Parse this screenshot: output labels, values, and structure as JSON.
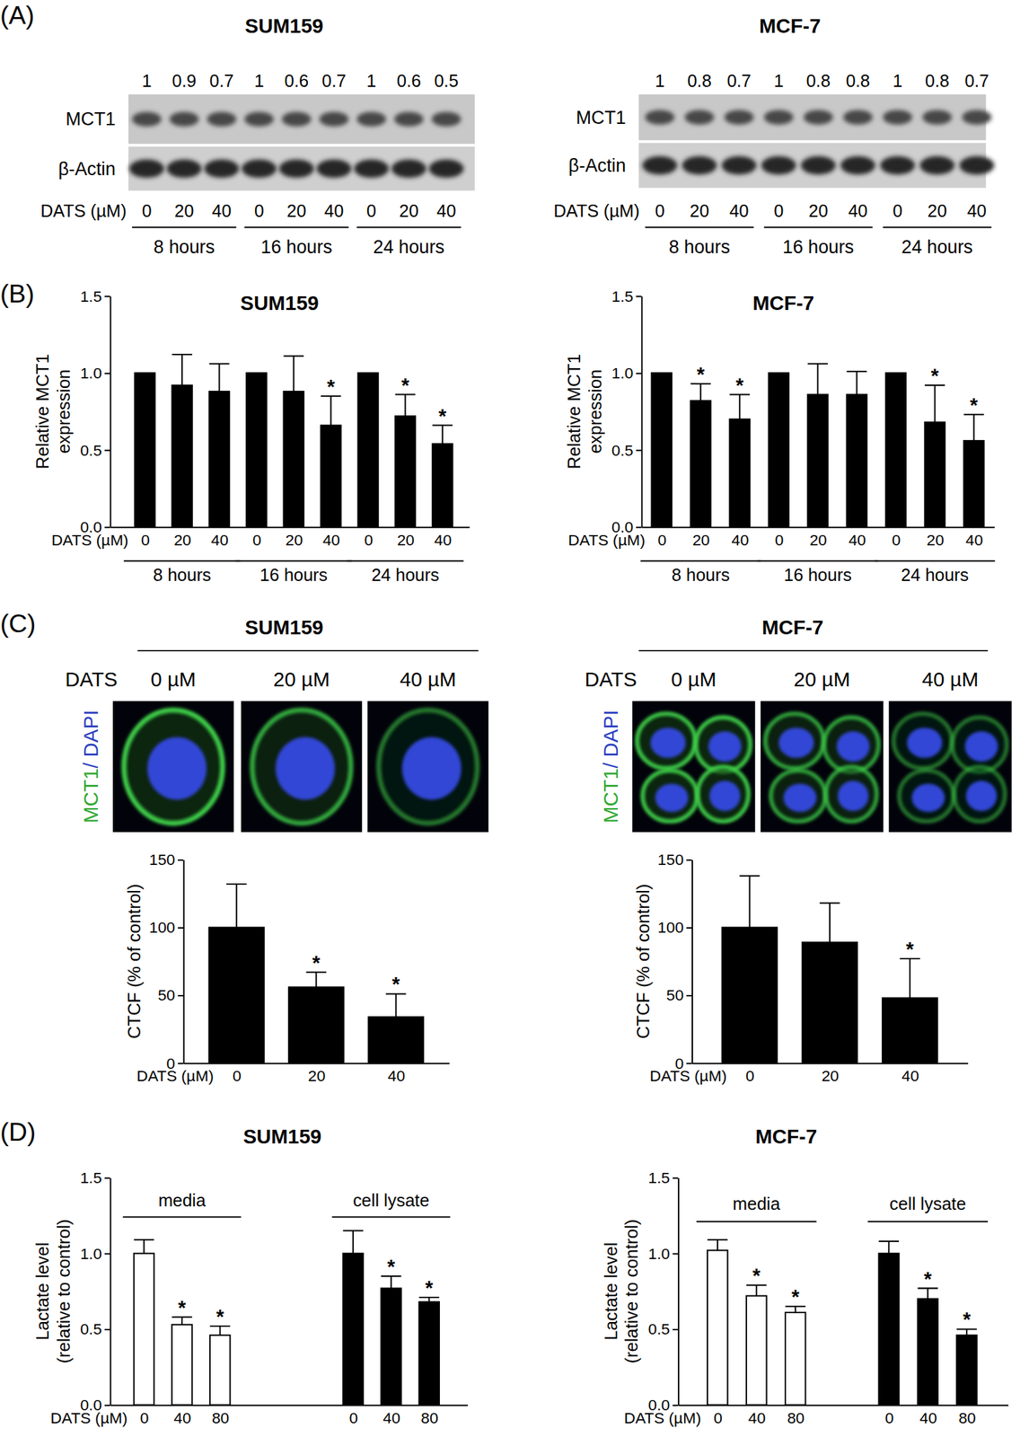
{
  "panel_labels": [
    "(A)",
    "(B)",
    "(C)",
    "(D)"
  ],
  "blots": [
    {
      "title": "SUM159",
      "rows": [
        "MCT1",
        "β-Actin"
      ],
      "ratios": [
        1,
        0.9,
        0.7,
        1,
        0.6,
        0.7,
        1,
        0.6,
        0.5
      ],
      "x_label": "DATS (µM)",
      "doses": [
        "0",
        "20",
        "40",
        "0",
        "20",
        "40",
        "0",
        "20",
        "40"
      ],
      "times": [
        "8 hours",
        "16 hours",
        "24 hours"
      ]
    },
    {
      "title": "MCF-7",
      "rows": [
        "MCT1",
        "β-Actin"
      ],
      "ratios": [
        1,
        0.8,
        0.7,
        1,
        0.8,
        0.8,
        1,
        0.8,
        0.7
      ],
      "x_label": "DATS (µM)",
      "doses": [
        "0",
        "20",
        "40",
        "0",
        "20",
        "40",
        "0",
        "20",
        "40"
      ],
      "times": [
        "8 hours",
        "16 hours",
        "24 hours"
      ]
    }
  ],
  "images": [
    {
      "title": "SUM159",
      "x_label": "DATS",
      "doses": [
        "0 µM",
        "20 µM",
        "40 µM"
      ],
      "stain": [
        "MCT1",
        "/ DAPI"
      ]
    },
    {
      "title": "MCF-7",
      "x_label": "DATS",
      "doses": [
        "0 µM",
        "20 µM",
        "40 µM"
      ],
      "stain": [
        "MCT1",
        "/ DAPI"
      ]
    }
  ],
  "chart_data": [
    {
      "type": "bar",
      "title": "SUM159",
      "x_label": "DATS (µM)",
      "y_label": "Relative MCT1\nexpression",
      "categories": [
        "0",
        "20",
        "40",
        "0",
        "20",
        "40",
        "0",
        "20",
        "40"
      ],
      "groups": [
        "8 hours",
        "16 hours",
        "24 hours"
      ],
      "values": [
        1,
        0.92,
        0.88,
        1,
        0.88,
        0.66,
        1,
        0.72,
        0.54
      ],
      "errors": [
        0,
        0.2,
        0.18,
        0,
        0.23,
        0.19,
        0,
        0.14,
        0.12
      ],
      "annotations": [
        null,
        null,
        null,
        null,
        null,
        "*",
        null,
        "*",
        "*"
      ],
      "color": "#000000",
      "ylim": [
        0,
        1.5
      ],
      "yticks": [
        {
          "value": 0,
          "label": "0.0"
        },
        {
          "value": 0.5,
          "label": "0.5"
        },
        {
          "value": 1,
          "label": "1.0"
        },
        {
          "value": 1.5,
          "label": "1.5"
        }
      ]
    },
    {
      "type": "bar",
      "title": "MCF-7",
      "x_label": "DATS (µM)",
      "y_label": "Relative MCT1\nexpression",
      "categories": [
        "0",
        "20",
        "40",
        "0",
        "20",
        "40",
        "0",
        "20",
        "40"
      ],
      "groups": [
        "8 hours",
        "16 hours",
        "24 hours"
      ],
      "values": [
        1,
        0.82,
        0.7,
        1,
        0.86,
        0.86,
        1,
        0.68,
        0.56
      ],
      "errors": [
        0,
        0.11,
        0.16,
        0,
        0.2,
        0.15,
        0,
        0.24,
        0.17
      ],
      "annotations": [
        null,
        "*",
        "*",
        null,
        null,
        null,
        null,
        "*",
        "*"
      ],
      "color": "#000000",
      "ylim": [
        0,
        1.5
      ],
      "yticks": [
        {
          "value": 0,
          "label": "0.0"
        },
        {
          "value": 0.5,
          "label": "0.5"
        },
        {
          "value": 1,
          "label": "1.0"
        },
        {
          "value": 1.5,
          "label": "1.5"
        }
      ]
    },
    {
      "type": "bar",
      "x_label": "DATS (µM)",
      "y_label": "CTCF (% of control)",
      "categories": [
        "0",
        "20",
        "40"
      ],
      "values": [
        100,
        56,
        34
      ],
      "errors": [
        32,
        11,
        17
      ],
      "annotations": [
        null,
        "*",
        "*"
      ],
      "color": "#000000",
      "ylim": [
        0,
        150
      ],
      "yticks": [
        0,
        50,
        100,
        150
      ]
    },
    {
      "type": "bar",
      "x_label": "DATS (µM)",
      "y_label": "CTCF (% of control)",
      "categories": [
        "0",
        "20",
        "40"
      ],
      "values": [
        100,
        89,
        48
      ],
      "errors": [
        38,
        29,
        29
      ],
      "annotations": [
        null,
        null,
        "*"
      ],
      "color": "#000000",
      "ylim": [
        0,
        150
      ],
      "yticks": [
        0,
        50,
        100,
        150
      ]
    },
    {
      "type": "bar",
      "title": "SUM159",
      "x_label": "DATS (µM)",
      "y_label": "Lactate level\n(relative to control)",
      "categories": [
        "0",
        "40",
        "80",
        "0",
        "40",
        "80"
      ],
      "groups": [
        "media",
        "cell lysate"
      ],
      "values": [
        1,
        0.53,
        0.46,
        1,
        0.77,
        0.68
      ],
      "errors": [
        0.09,
        0.05,
        0.06,
        0.15,
        0.08,
        0.03
      ],
      "annotations": [
        null,
        "*",
        "*",
        null,
        "*",
        "*"
      ],
      "colors": [
        "#ffffff",
        "#ffffff",
        "#ffffff",
        "#000000",
        "#000000",
        "#000000"
      ],
      "ylim": [
        0,
        1.5
      ],
      "yticks": [
        {
          "value": 0,
          "label": "0.0"
        },
        {
          "value": 0.5,
          "label": "0.5"
        },
        {
          "value": 1,
          "label": "1.0"
        },
        {
          "value": 1.5,
          "label": "1.5"
        }
      ]
    },
    {
      "type": "bar",
      "title": "MCF-7",
      "x_label": "DATS (µM)",
      "y_label": "Lactate level\n(relative to control)",
      "categories": [
        "0",
        "40",
        "80",
        "0",
        "40",
        "80"
      ],
      "groups": [
        "media",
        "cell lysate"
      ],
      "values": [
        1.02,
        0.72,
        0.61,
        1,
        0.7,
        0.46
      ],
      "errors": [
        0.07,
        0.07,
        0.04,
        0.08,
        0.07,
        0.04
      ],
      "annotations": [
        null,
        "*",
        "*",
        null,
        "*",
        "*"
      ],
      "colors": [
        "#ffffff",
        "#ffffff",
        "#ffffff",
        "#000000",
        "#000000",
        "#000000"
      ],
      "ylim": [
        0,
        1.5
      ],
      "yticks": [
        {
          "value": 0,
          "label": "0.0"
        },
        {
          "value": 0.5,
          "label": "0.5"
        },
        {
          "value": 1,
          "label": "1.0"
        },
        {
          "value": 1.5,
          "label": "1.5"
        }
      ]
    }
  ]
}
